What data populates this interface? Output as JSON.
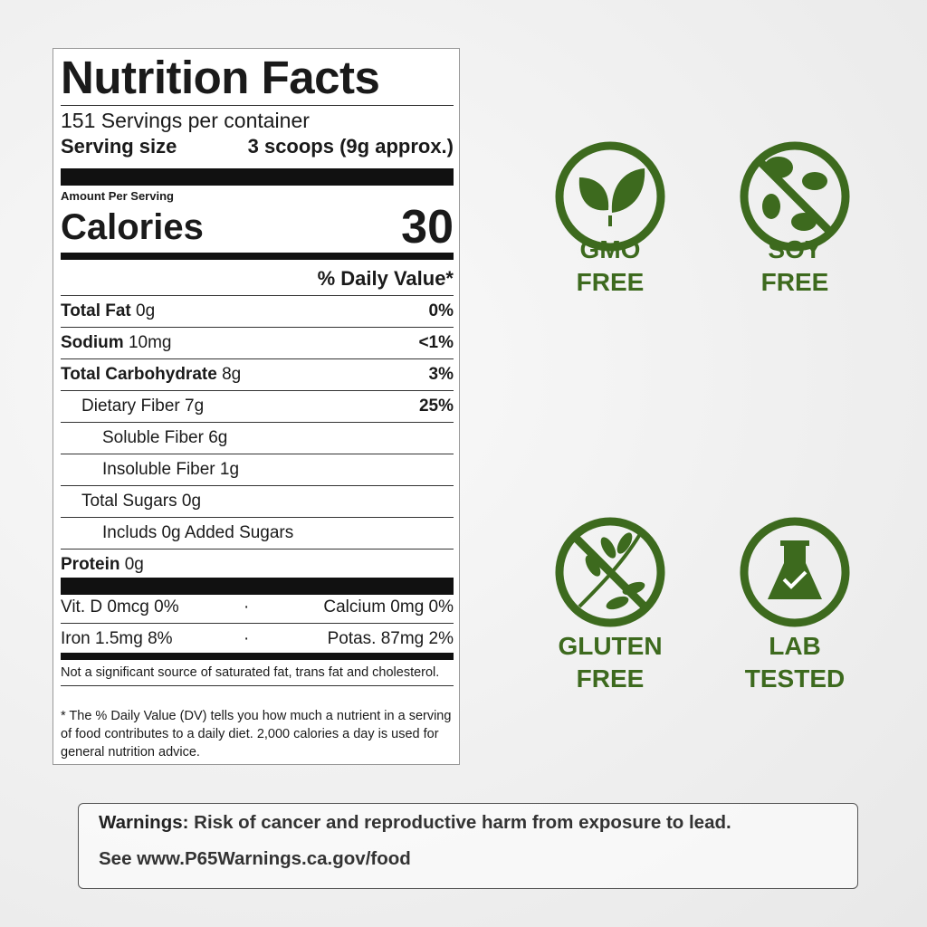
{
  "nutrition_facts": {
    "title": "Nutrition Facts",
    "servings": "151 Servings per container",
    "serving_size_label": "Serving size",
    "serving_size": "3 scoops (9g approx.)",
    "amount_per_serving": "Amount Per Serving",
    "calories_label": "Calories",
    "calories": 30,
    "daily_value_header": "% Daily Value*",
    "rows": [
      {
        "name": "Total Fat",
        "amount": "0g",
        "dv": "0%"
      },
      {
        "name": "Sodium",
        "amount": "10mg",
        "dv": "<1%"
      },
      {
        "name": "Total Carbohydrate",
        "amount": "8g",
        "dv": "3%"
      },
      {
        "name": "Dietary Fiber 7g",
        "dv": "25%"
      },
      {
        "name": "Soluble Fiber 6g"
      },
      {
        "name": "Insoluble Fiber 1g"
      },
      {
        "name": "Total Sugars 0g"
      },
      {
        "name": "Includs 0g Added Sugars"
      },
      {
        "name": "Protein",
        "amount": "0g"
      }
    ],
    "vitamins": [
      [
        "Vit. D 0mcg 0%",
        "Calcium 0mg 0%"
      ],
      [
        "Iron 1.5mg 8%",
        "Potas. 87mg 2%"
      ]
    ],
    "footnote_1": "Not a significant source of saturated fat, trans fat and cholesterol.",
    "footnote_2": "* The % Daily Value (DV) tells you how much a nutrient in a serving of food contributes to a daily diet. 2,000 calories a day is used for general nutrition advice."
  },
  "badges": [
    {
      "lines": [
        "GMO",
        "FREE"
      ]
    },
    {
      "lines": [
        "SOY",
        "FREE"
      ]
    },
    {
      "lines": [
        "GLUTEN",
        "FREE"
      ]
    },
    {
      "lines": [
        "LAB",
        "TESTED"
      ]
    }
  ],
  "warning": {
    "label": "Warnings:",
    "text": "Risk of cancer and reproductive harm from exposure to lead.",
    "link": "See www.P65Warnings.ca.gov/food"
  }
}
